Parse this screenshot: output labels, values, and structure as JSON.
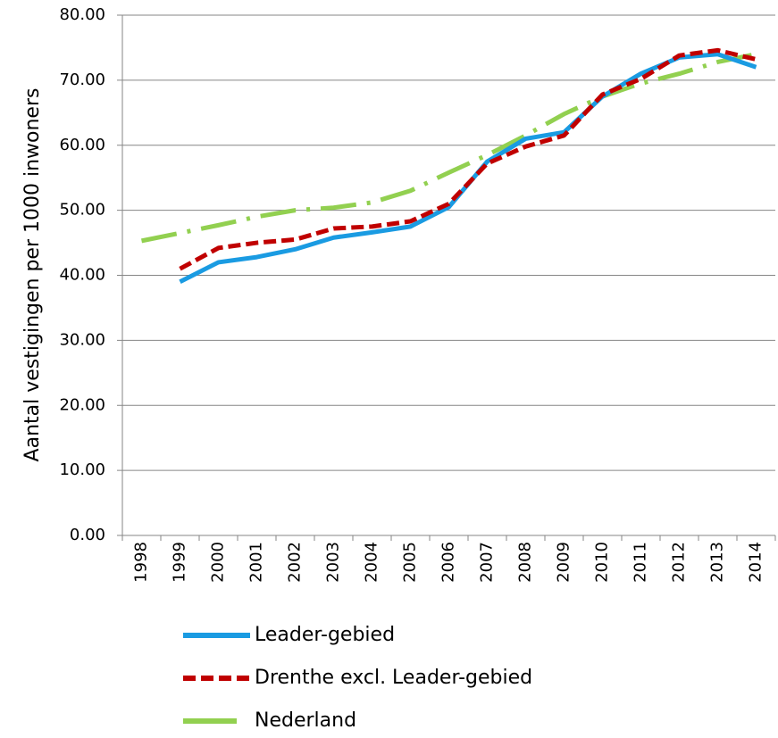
{
  "chart_data": {
    "type": "line",
    "y_label": "Aantal vestigingen per 1000 inwoners",
    "categories": [
      "1998",
      "1999",
      "2000",
      "2001",
      "2002",
      "2003",
      "2004",
      "2005",
      "2006",
      "2007",
      "2008",
      "2009",
      "2010",
      "2011",
      "2012",
      "2013",
      "2014"
    ],
    "series": [
      {
        "name": "Leader-gebied",
        "color": "#1a9be2",
        "dash": "none",
        "values": [
          null,
          39.0,
          42.0,
          42.8,
          44.0,
          45.8,
          46.6,
          47.5,
          50.5,
          57.5,
          61.0,
          62.0,
          67.5,
          71.0,
          73.5,
          74.0,
          72.0
        ]
      },
      {
        "name": "Drenthe excl. Leader-gebied",
        "color": "#c00000",
        "dash": "14 6",
        "values": [
          null,
          41.0,
          44.2,
          45.0,
          45.5,
          47.2,
          47.5,
          48.3,
          51.0,
          57.2,
          59.8,
          61.5,
          67.8,
          70.2,
          73.8,
          74.6,
          73.2
        ]
      },
      {
        "name": "Nederland",
        "color": "#92d050",
        "dash": "40 12 4 12",
        "values": [
          45.3,
          46.5,
          47.7,
          49.0,
          50.0,
          50.4,
          51.2,
          53.0,
          55.8,
          58.5,
          61.5,
          64.8,
          67.5,
          69.5,
          71.0,
          72.8,
          74.0
        ]
      }
    ],
    "ylim": [
      0,
      80
    ],
    "yticks": [
      {
        "value": 0,
        "label": "0.00"
      },
      {
        "value": 10,
        "label": "10.00"
      },
      {
        "value": 20,
        "label": "20.00"
      },
      {
        "value": 30,
        "label": "30.00"
      },
      {
        "value": 40,
        "label": "40.00"
      },
      {
        "value": 50,
        "label": "50.00"
      },
      {
        "value": 60,
        "label": "60.00"
      },
      {
        "value": 70,
        "label": "70.00"
      },
      {
        "value": 80,
        "label": "80.00"
      }
    ],
    "grid": true
  }
}
